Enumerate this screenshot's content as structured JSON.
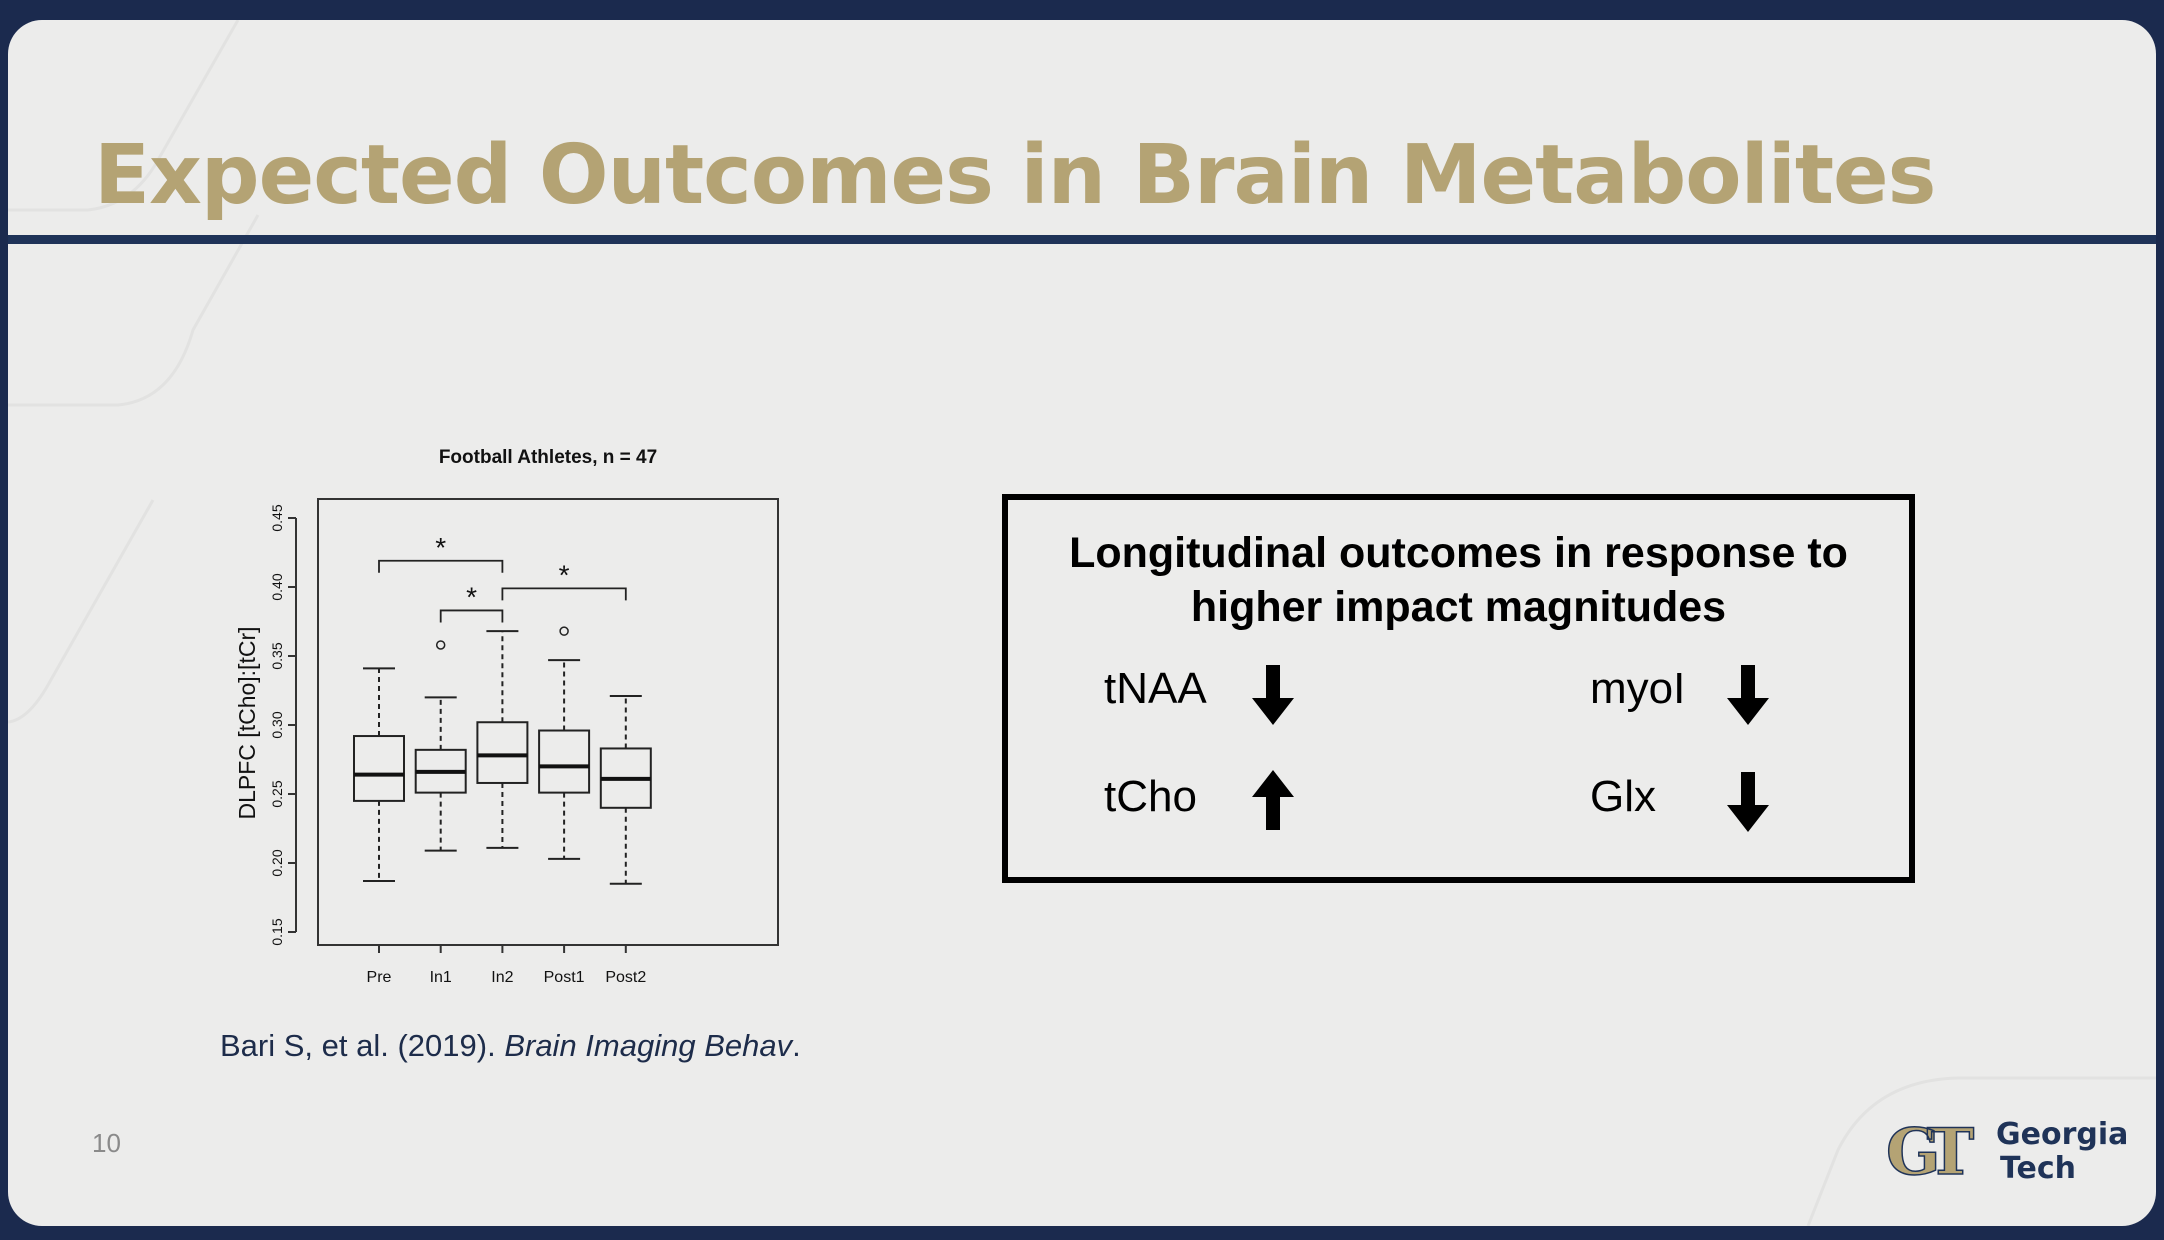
{
  "slide": {
    "title": "Expected Outcomes in Brain Metabolites",
    "page_number": "10",
    "colors": {
      "frame": "#1b2a4e",
      "title": "#b4a374",
      "rule": "#1f3358",
      "background": "#ececeb"
    }
  },
  "chart_data": {
    "type": "boxplot",
    "title": "Football Athletes, n = 47",
    "xlabel": "",
    "ylabel": "DLPFC [tCho]:[tCr]",
    "ylim": [
      0.15,
      0.45
    ],
    "yticks": [
      "0.15",
      "0.20",
      "0.25",
      "0.30",
      "0.35",
      "0.40",
      "0.45"
    ],
    "categories": [
      "Pre",
      "In1",
      "In2",
      "Post1",
      "Post2"
    ],
    "boxes": [
      {
        "label": "Pre",
        "whisker_low": 0.187,
        "q1": 0.245,
        "median": 0.264,
        "q3": 0.292,
        "whisker_high": 0.341,
        "outliers": []
      },
      {
        "label": "In1",
        "whisker_low": 0.209,
        "q1": 0.251,
        "median": 0.266,
        "q3": 0.282,
        "whisker_high": 0.32,
        "outliers": [
          0.358
        ]
      },
      {
        "label": "In2",
        "whisker_low": 0.211,
        "q1": 0.258,
        "median": 0.278,
        "q3": 0.302,
        "whisker_high": 0.368,
        "outliers": []
      },
      {
        "label": "Post1",
        "whisker_low": 0.203,
        "q1": 0.251,
        "median": 0.27,
        "q3": 0.296,
        "whisker_high": 0.347,
        "outliers": [
          0.368
        ]
      },
      {
        "label": "Post2",
        "whisker_low": 0.185,
        "q1": 0.24,
        "median": 0.261,
        "q3": 0.283,
        "whisker_high": 0.321,
        "outliers": []
      }
    ],
    "significance": [
      {
        "from": "Pre",
        "to": "In2",
        "level": 0.419,
        "label": "*"
      },
      {
        "from": "In1",
        "to": "In2",
        "level": 0.383,
        "label": "*"
      },
      {
        "from": "In2",
        "to": "Post2",
        "level": 0.399,
        "label": "*"
      }
    ],
    "grid": false,
    "legend": "none"
  },
  "citation": {
    "prefix": "Bari S, et al. (2019). ",
    "journal": "Brain Imaging Behav",
    "suffix": "."
  },
  "outcomes": {
    "title_line1": "Longitudinal outcomes in response to",
    "title_line2": "higher impact magnitudes",
    "items": [
      {
        "name": "tNAA",
        "direction": "down",
        "icon": "arrow-down-icon"
      },
      {
        "name": "myoI",
        "direction": "down",
        "icon": "arrow-down-icon"
      },
      {
        "name": "tCho",
        "direction": "up",
        "icon": "arrow-up-icon"
      },
      {
        "name": "Glx",
        "direction": "down",
        "icon": "arrow-down-icon"
      }
    ]
  },
  "logo": {
    "monogram": "GT",
    "line1": "Georgia",
    "line2": "Tech"
  }
}
